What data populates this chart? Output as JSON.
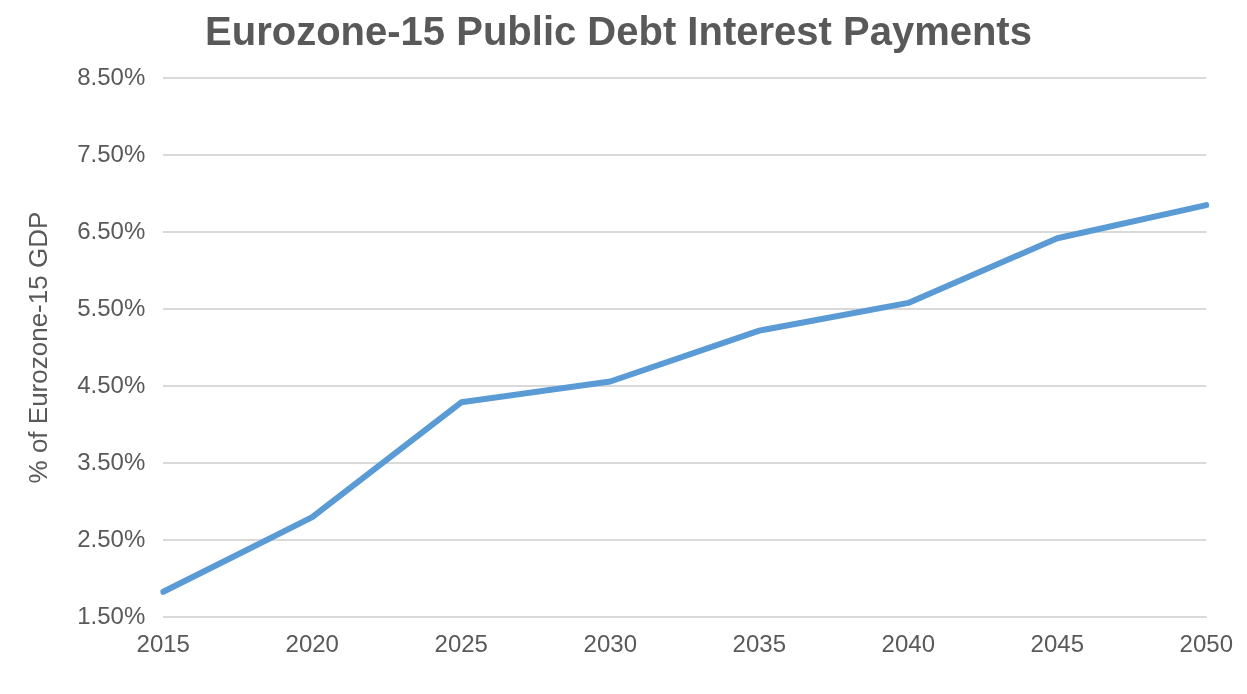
{
  "chart_data": {
    "type": "line",
    "title": "Eurozone-15 Public Debt Interest Payments",
    "ylabel": "% of Eurozone-15 GDP",
    "categories": [
      "2015",
      "2020",
      "2025",
      "2030",
      "2035",
      "2040",
      "2045",
      "2050"
    ],
    "series": [
      {
        "color": "#5b9bd5",
        "values": [
          1.83,
          2.8,
          4.29,
          4.56,
          5.22,
          5.58,
          6.42,
          6.85
        ]
      }
    ],
    "ylim": [
      1.5,
      8.5
    ],
    "yticks": [
      {
        "value": 1.5,
        "label": "1.50%"
      },
      {
        "value": 2.5,
        "label": "2.50%"
      },
      {
        "value": 3.5,
        "label": "3.50%"
      },
      {
        "value": 4.5,
        "label": "4.50%"
      },
      {
        "value": 5.5,
        "label": "5.50%"
      },
      {
        "value": 6.5,
        "label": "6.50%"
      },
      {
        "value": 7.5,
        "label": "7.50%"
      },
      {
        "value": 8.5,
        "label": "8.50%"
      }
    ],
    "grid": "y",
    "legend": false,
    "marker": "none",
    "line_style": "solid"
  }
}
